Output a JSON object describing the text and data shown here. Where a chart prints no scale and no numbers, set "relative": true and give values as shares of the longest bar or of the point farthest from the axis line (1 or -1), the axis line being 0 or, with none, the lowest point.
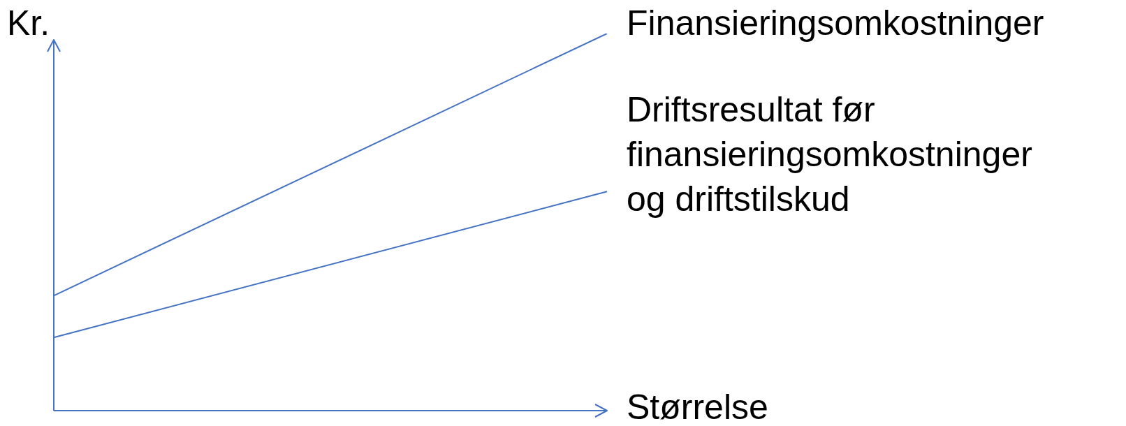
{
  "chart_data": {
    "type": "line",
    "relative": true,
    "xlabel": "Størrelse",
    "ylabel": "Kr.",
    "marker": "none",
    "categories": [
      null,
      null
    ],
    "series": [
      {
        "name": "Finansieringsomkostninger",
        "color": "#4472c4",
        "values": [
          0.305,
          1
        ]
      },
      {
        "name": "Driftsresultat før finansieringsomkostninger og driftstilskud",
        "color": "#4472c4",
        "values": [
          0.194,
          0.581
        ]
      }
    ]
  }
}
